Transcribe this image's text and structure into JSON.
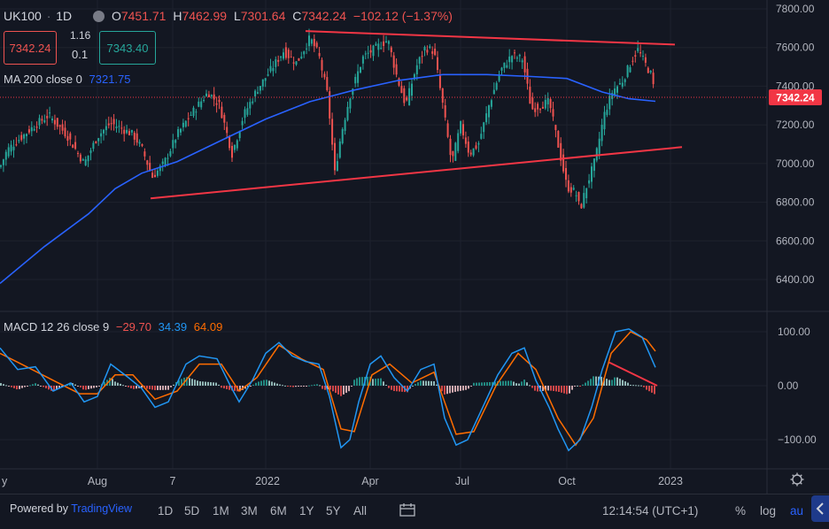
{
  "header": {
    "symbol": "UK100",
    "sep": "·",
    "interval": "1D",
    "o_label": "O",
    "o_value": "7451.71",
    "h_label": "H",
    "h_value": "7462.99",
    "l_label": "L",
    "l_value": "7301.64",
    "c_label": "C",
    "c_value": "7342.24",
    "change": "−102.12 (−1.37%)",
    "sell_price": "7342.24",
    "spread_top": "1.16",
    "spread_bottom": "0.1",
    "buy_price": "7343.40",
    "ma_label": "MA 200 close 0",
    "ma_value": "7321.75",
    "macd_label": "MACD 12 26 close 9",
    "macd_hist": "−29.70",
    "macd_line": "34.39",
    "macd_signal": "64.09"
  },
  "colors": {
    "background": "#131722",
    "up": "#26a69a",
    "down": "#ef5350",
    "ma": "#2962ff",
    "macd": "#2196f3",
    "signal": "#ff6d00",
    "trendline": "#f23645",
    "price_tag": "#f23645"
  },
  "price_axis": {
    "ticks": [
      "7800.00",
      "7600.00",
      "7400.00",
      "7200.00",
      "7000.00",
      "6800.00",
      "6600.00",
      "6400.00"
    ],
    "current_price_label": "7342.24"
  },
  "macd_axis": {
    "ticks": [
      "100.00",
      "0.00",
      "−100.00"
    ]
  },
  "time_axis": {
    "labels": [
      "y",
      "Aug",
      "7",
      "2022",
      "Apr",
      "Jul",
      "Oct",
      "2023"
    ]
  },
  "bottom_bar": {
    "powered_by": "Powered by",
    "brand": "TradingView",
    "timeframes": [
      "1D",
      "5D",
      "1M",
      "3M",
      "6M",
      "1Y",
      "5Y",
      "All"
    ],
    "clock": "12:14:54 (UTC+1)",
    "percent": "%",
    "log": "log",
    "auto": "au"
  },
  "chart_data": [
    {
      "type": "candlestick",
      "series_name": "UK100",
      "interval": "1D",
      "ylim": [
        6300,
        7850
      ],
      "x_labels": [
        "Aug",
        "2022",
        "Apr",
        "Jul",
        "Oct",
        "2023"
      ],
      "price_path": [
        {
          "x": 0,
          "y": 6980
        },
        {
          "x": 8,
          "y": 7070
        },
        {
          "x": 20,
          "y": 7120
        },
        {
          "x": 40,
          "y": 7200
        },
        {
          "x": 55,
          "y": 7250
        },
        {
          "x": 75,
          "y": 7150
        },
        {
          "x": 95,
          "y": 7000
        },
        {
          "x": 110,
          "y": 7140
        },
        {
          "x": 125,
          "y": 7210
        },
        {
          "x": 150,
          "y": 7150
        },
        {
          "x": 160,
          "y": 7080
        },
        {
          "x": 172,
          "y": 6930
        },
        {
          "x": 185,
          "y": 7000
        },
        {
          "x": 200,
          "y": 7150
        },
        {
          "x": 215,
          "y": 7250
        },
        {
          "x": 235,
          "y": 7370
        },
        {
          "x": 248,
          "y": 7300
        },
        {
          "x": 262,
          "y": 7050
        },
        {
          "x": 275,
          "y": 7250
        },
        {
          "x": 290,
          "y": 7380
        },
        {
          "x": 305,
          "y": 7480
        },
        {
          "x": 320,
          "y": 7580
        },
        {
          "x": 335,
          "y": 7520
        },
        {
          "x": 350,
          "y": 7650
        },
        {
          "x": 360,
          "y": 7560
        },
        {
          "x": 370,
          "y": 7350
        },
        {
          "x": 378,
          "y": 6950
        },
        {
          "x": 385,
          "y": 7150
        },
        {
          "x": 395,
          "y": 7350
        },
        {
          "x": 410,
          "y": 7550
        },
        {
          "x": 425,
          "y": 7600
        },
        {
          "x": 438,
          "y": 7640
        },
        {
          "x": 448,
          "y": 7450
        },
        {
          "x": 458,
          "y": 7300
        },
        {
          "x": 470,
          "y": 7500
        },
        {
          "x": 480,
          "y": 7600
        },
        {
          "x": 490,
          "y": 7580
        },
        {
          "x": 500,
          "y": 7300
        },
        {
          "x": 510,
          "y": 7000
        },
        {
          "x": 520,
          "y": 7200
        },
        {
          "x": 530,
          "y": 7050
        },
        {
          "x": 540,
          "y": 7100
        },
        {
          "x": 552,
          "y": 7300
        },
        {
          "x": 565,
          "y": 7480
        },
        {
          "x": 578,
          "y": 7560
        },
        {
          "x": 590,
          "y": 7540
        },
        {
          "x": 600,
          "y": 7280
        },
        {
          "x": 610,
          "y": 7300
        },
        {
          "x": 620,
          "y": 7320
        },
        {
          "x": 630,
          "y": 7100
        },
        {
          "x": 640,
          "y": 6880
        },
        {
          "x": 650,
          "y": 6850
        },
        {
          "x": 655,
          "y": 6760
        },
        {
          "x": 662,
          "y": 6880
        },
        {
          "x": 672,
          "y": 7020
        },
        {
          "x": 682,
          "y": 7250
        },
        {
          "x": 692,
          "y": 7380
        },
        {
          "x": 702,
          "y": 7420
        },
        {
          "x": 712,
          "y": 7520
        },
        {
          "x": 720,
          "y": 7590
        },
        {
          "x": 728,
          "y": 7520
        },
        {
          "x": 735,
          "y": 7460
        },
        {
          "x": 740,
          "y": 7342
        }
      ],
      "ma200_path": [
        {
          "x": 0,
          "y": 6380
        },
        {
          "x": 50,
          "y": 6570
        },
        {
          "x": 100,
          "y": 6740
        },
        {
          "x": 130,
          "y": 6870
        },
        {
          "x": 160,
          "y": 6950
        },
        {
          "x": 200,
          "y": 7010
        },
        {
          "x": 250,
          "y": 7120
        },
        {
          "x": 300,
          "y": 7230
        },
        {
          "x": 350,
          "y": 7320
        },
        {
          "x": 400,
          "y": 7380
        },
        {
          "x": 450,
          "y": 7430
        },
        {
          "x": 500,
          "y": 7460
        },
        {
          "x": 550,
          "y": 7460
        },
        {
          "x": 600,
          "y": 7450
        },
        {
          "x": 640,
          "y": 7440
        },
        {
          "x": 680,
          "y": 7370
        },
        {
          "x": 710,
          "y": 7335
        },
        {
          "x": 740,
          "y": 7322
        }
      ],
      "trendlines": [
        {
          "x1": 345,
          "y1": 7685,
          "x2": 762,
          "y2": 7615
        },
        {
          "x1": 170,
          "y1": 6820,
          "x2": 770,
          "y2": 7085
        }
      ]
    },
    {
      "type": "macd",
      "params": "12 26 close 9",
      "ylim": [
        -130,
        130
      ],
      "macd_path": [
        {
          "x": 0,
          "y": 70
        },
        {
          "x": 20,
          "y": 30
        },
        {
          "x": 40,
          "y": 35
        },
        {
          "x": 60,
          "y": -10
        },
        {
          "x": 80,
          "y": 5
        },
        {
          "x": 95,
          "y": -30
        },
        {
          "x": 110,
          "y": -20
        },
        {
          "x": 125,
          "y": 40
        },
        {
          "x": 145,
          "y": 15
        },
        {
          "x": 160,
          "y": -5
        },
        {
          "x": 175,
          "y": -40
        },
        {
          "x": 190,
          "y": -30
        },
        {
          "x": 210,
          "y": 40
        },
        {
          "x": 225,
          "y": 55
        },
        {
          "x": 245,
          "y": 50
        },
        {
          "x": 260,
          "y": 0
        },
        {
          "x": 270,
          "y": -30
        },
        {
          "x": 285,
          "y": 10
        },
        {
          "x": 300,
          "y": 60
        },
        {
          "x": 315,
          "y": 80
        },
        {
          "x": 330,
          "y": 55
        },
        {
          "x": 345,
          "y": 45
        },
        {
          "x": 360,
          "y": 40
        },
        {
          "x": 372,
          "y": -20
        },
        {
          "x": 385,
          "y": -115
        },
        {
          "x": 395,
          "y": -100
        },
        {
          "x": 405,
          "y": -30
        },
        {
          "x": 418,
          "y": 40
        },
        {
          "x": 430,
          "y": 55
        },
        {
          "x": 445,
          "y": 15
        },
        {
          "x": 460,
          "y": -10
        },
        {
          "x": 475,
          "y": 30
        },
        {
          "x": 490,
          "y": 40
        },
        {
          "x": 502,
          "y": -60
        },
        {
          "x": 515,
          "y": -110
        },
        {
          "x": 528,
          "y": -100
        },
        {
          "x": 545,
          "y": -40
        },
        {
          "x": 562,
          "y": 20
        },
        {
          "x": 578,
          "y": 60
        },
        {
          "x": 592,
          "y": 70
        },
        {
          "x": 605,
          "y": 10
        },
        {
          "x": 620,
          "y": -40
        },
        {
          "x": 630,
          "y": -80
        },
        {
          "x": 642,
          "y": -120
        },
        {
          "x": 655,
          "y": -100
        },
        {
          "x": 668,
          "y": -40
        },
        {
          "x": 680,
          "y": 30
        },
        {
          "x": 695,
          "y": 100
        },
        {
          "x": 710,
          "y": 105
        },
        {
          "x": 725,
          "y": 90
        },
        {
          "x": 740,
          "y": 34
        }
      ],
      "signal_path": [
        {
          "x": 0,
          "y": 60
        },
        {
          "x": 30,
          "y": 35
        },
        {
          "x": 60,
          "y": 10
        },
        {
          "x": 90,
          "y": -15
        },
        {
          "x": 110,
          "y": -15
        },
        {
          "x": 130,
          "y": 20
        },
        {
          "x": 150,
          "y": 20
        },
        {
          "x": 175,
          "y": -25
        },
        {
          "x": 200,
          "y": -10
        },
        {
          "x": 225,
          "y": 40
        },
        {
          "x": 250,
          "y": 40
        },
        {
          "x": 270,
          "y": -10
        },
        {
          "x": 290,
          "y": 15
        },
        {
          "x": 315,
          "y": 75
        },
        {
          "x": 340,
          "y": 50
        },
        {
          "x": 365,
          "y": 30
        },
        {
          "x": 385,
          "y": -80
        },
        {
          "x": 400,
          "y": -85
        },
        {
          "x": 420,
          "y": 20
        },
        {
          "x": 440,
          "y": 40
        },
        {
          "x": 465,
          "y": 5
        },
        {
          "x": 490,
          "y": 25
        },
        {
          "x": 515,
          "y": -90
        },
        {
          "x": 535,
          "y": -85
        },
        {
          "x": 560,
          "y": 0
        },
        {
          "x": 585,
          "y": 60
        },
        {
          "x": 605,
          "y": 30
        },
        {
          "x": 630,
          "y": -60
        },
        {
          "x": 650,
          "y": -110
        },
        {
          "x": 670,
          "y": -60
        },
        {
          "x": 690,
          "y": 60
        },
        {
          "x": 712,
          "y": 100
        },
        {
          "x": 730,
          "y": 85
        },
        {
          "x": 740,
          "y": 64
        }
      ],
      "divergence_line": {
        "x1": 688,
        "y1": 43,
        "x2": 742,
        "y2": 0
      }
    }
  ]
}
